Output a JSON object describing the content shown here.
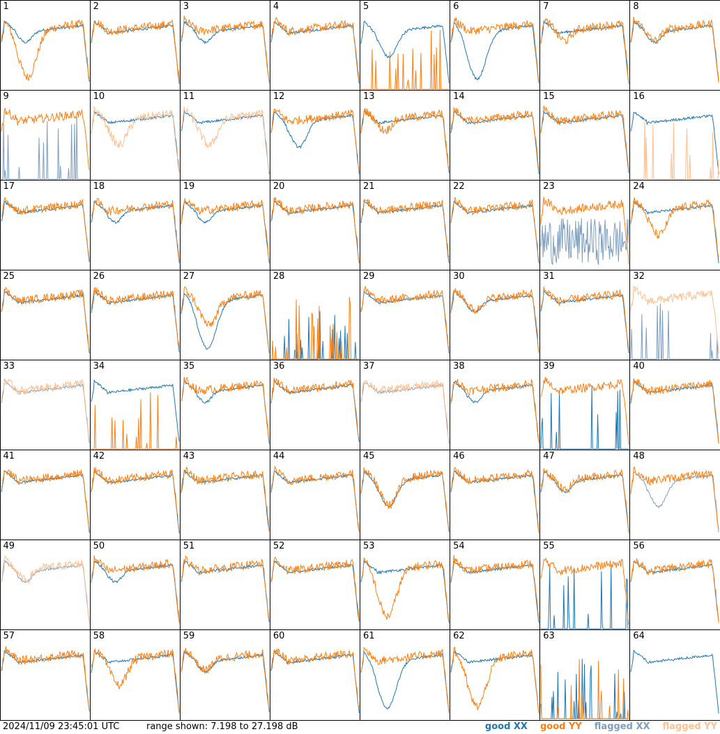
{
  "footer": {
    "timestamp": "2024/11/09 23:45:01 UTC",
    "range": "range shown: 7.198 to 27.198 dB"
  },
  "legend": [
    {
      "label": "good XX",
      "color": "#1f77b4"
    },
    {
      "label": "good YY",
      "color": "#ff7f0e"
    },
    {
      "label": "flagged XX",
      "color": "#7f9fbf"
    },
    {
      "label": "flagged YY",
      "color": "#ffbf90"
    }
  ],
  "chart_data": {
    "type": "line",
    "grid_rows": 8,
    "grid_cols": 8,
    "ylim": [
      7.198,
      27.198
    ],
    "panels": [
      {
        "id": "1",
        "xx": "good",
        "yy": "good",
        "xx_shape": "sag",
        "yy_shape": "deep_dip"
      },
      {
        "id": "2",
        "xx": "good",
        "yy": "good",
        "xx_shape": "flat",
        "yy_shape": "flat"
      },
      {
        "id": "3",
        "xx": "good",
        "yy": "good",
        "xx_shape": "sag",
        "yy_shape": "flat"
      },
      {
        "id": "4",
        "xx": "good",
        "yy": "good",
        "xx_shape": "flat",
        "yy_shape": "flat"
      },
      {
        "id": "5",
        "xx": "good",
        "yy": "good",
        "xx_shape": "dip",
        "yy_shape": "spikes_low"
      },
      {
        "id": "6",
        "xx": "good",
        "yy": "good",
        "xx_shape": "deep_dip",
        "yy_shape": "flat"
      },
      {
        "id": "7",
        "xx": "good",
        "yy": "good",
        "xx_shape": "flat",
        "yy_shape": "sag"
      },
      {
        "id": "8",
        "xx": "good",
        "yy": "good",
        "xx_shape": "sag",
        "yy_shape": "sag"
      },
      {
        "id": "9",
        "xx": "flagged",
        "yy": "good",
        "xx_shape": "spikes_low",
        "yy_shape": "flat"
      },
      {
        "id": "10",
        "xx": "good",
        "yy": "flagged",
        "xx_shape": "flat",
        "yy_shape": "dip"
      },
      {
        "id": "11",
        "xx": "good",
        "yy": "flagged",
        "xx_shape": "flat",
        "yy_shape": "dip"
      },
      {
        "id": "12",
        "xx": "good",
        "yy": "good",
        "xx_shape": "dip",
        "yy_shape": "flat"
      },
      {
        "id": "13",
        "xx": "good",
        "yy": "good",
        "xx_shape": "flat",
        "yy_shape": "sag"
      },
      {
        "id": "14",
        "xx": "good",
        "yy": "good",
        "xx_shape": "flat",
        "yy_shape": "flat"
      },
      {
        "id": "15",
        "xx": "good",
        "yy": "good",
        "xx_shape": "flat",
        "yy_shape": "flat"
      },
      {
        "id": "16",
        "xx": "good",
        "yy": "flagged",
        "xx_shape": "flat",
        "yy_shape": "spikes_low"
      },
      {
        "id": "17",
        "xx": "good",
        "yy": "good",
        "xx_shape": "flat",
        "yy_shape": "flat"
      },
      {
        "id": "18",
        "xx": "good",
        "yy": "good",
        "xx_shape": "sag",
        "yy_shape": "flat"
      },
      {
        "id": "19",
        "xx": "good",
        "yy": "good",
        "xx_shape": "sag",
        "yy_shape": "flat"
      },
      {
        "id": "20",
        "xx": "good",
        "yy": "good",
        "xx_shape": "flat",
        "yy_shape": "flat"
      },
      {
        "id": "21",
        "xx": "good",
        "yy": "good",
        "xx_shape": "flat",
        "yy_shape": "flat"
      },
      {
        "id": "22",
        "xx": "good",
        "yy": "good",
        "xx_shape": "flat",
        "yy_shape": "flat"
      },
      {
        "id": "23",
        "xx": "flagged",
        "yy": "good",
        "xx_shape": "noise",
        "yy_shape": "flat"
      },
      {
        "id": "24",
        "xx": "good",
        "yy": "good",
        "xx_shape": "flat",
        "yy_shape": "dip"
      },
      {
        "id": "25",
        "xx": "good",
        "yy": "good",
        "xx_shape": "flat",
        "yy_shape": "flat"
      },
      {
        "id": "26",
        "xx": "good",
        "yy": "good",
        "xx_shape": "flat",
        "yy_shape": "flat"
      },
      {
        "id": "27",
        "xx": "good",
        "yy": "good",
        "xx_shape": "deep_dip",
        "yy_shape": "dip"
      },
      {
        "id": "28",
        "xx": "good",
        "yy": "good",
        "xx_shape": "spikes_low",
        "yy_shape": "spikes_low"
      },
      {
        "id": "29",
        "xx": "good",
        "yy": "good",
        "xx_shape": "flat",
        "yy_shape": "flat"
      },
      {
        "id": "30",
        "xx": "good",
        "yy": "good",
        "xx_shape": "sag",
        "yy_shape": "sag"
      },
      {
        "id": "31",
        "xx": "good",
        "yy": "good",
        "xx_shape": "flat",
        "yy_shape": "flat"
      },
      {
        "id": "32",
        "xx": "flagged",
        "yy": "flagged",
        "xx_shape": "spikes_low",
        "yy_shape": "flat"
      },
      {
        "id": "33",
        "xx": "flagged",
        "yy": "flagged",
        "xx_shape": "flat",
        "yy_shape": "flat"
      },
      {
        "id": "34",
        "xx": "good",
        "yy": "good",
        "xx_shape": "flat",
        "yy_shape": "spikes_low"
      },
      {
        "id": "35",
        "xx": "good",
        "yy": "good",
        "xx_shape": "sag",
        "yy_shape": "flat"
      },
      {
        "id": "36",
        "xx": "good",
        "yy": "good",
        "xx_shape": "flat",
        "yy_shape": "flat"
      },
      {
        "id": "37",
        "xx": "flagged",
        "yy": "flagged",
        "xx_shape": "flat",
        "yy_shape": "flat"
      },
      {
        "id": "38",
        "xx": "good",
        "yy": "good",
        "xx_shape": "sag",
        "yy_shape": "flat"
      },
      {
        "id": "39",
        "xx": "good",
        "yy": "good",
        "xx_shape": "spikes_low",
        "yy_shape": "flat"
      },
      {
        "id": "40",
        "xx": "good",
        "yy": "good",
        "xx_shape": "flat",
        "yy_shape": "flat"
      },
      {
        "id": "41",
        "xx": "good",
        "yy": "good",
        "xx_shape": "flat",
        "yy_shape": "flat"
      },
      {
        "id": "42",
        "xx": "good",
        "yy": "good",
        "xx_shape": "flat",
        "yy_shape": "flat"
      },
      {
        "id": "43",
        "xx": "good",
        "yy": "good",
        "xx_shape": "flat",
        "yy_shape": "flat"
      },
      {
        "id": "44",
        "xx": "good",
        "yy": "good",
        "xx_shape": "flat",
        "yy_shape": "flat"
      },
      {
        "id": "45",
        "xx": "good",
        "yy": "good",
        "xx_shape": "dip",
        "yy_shape": "dip"
      },
      {
        "id": "46",
        "xx": "good",
        "yy": "good",
        "xx_shape": "flat",
        "yy_shape": "flat"
      },
      {
        "id": "47",
        "xx": "good",
        "yy": "good",
        "xx_shape": "sag",
        "yy_shape": "sag"
      },
      {
        "id": "48",
        "xx": "flagged",
        "yy": "good",
        "xx_shape": "dip",
        "yy_shape": "flat"
      },
      {
        "id": "49",
        "xx": "flagged",
        "yy": "flagged",
        "xx_shape": "sag",
        "yy_shape": "sag"
      },
      {
        "id": "50",
        "xx": "good",
        "yy": "good",
        "xx_shape": "sag",
        "yy_shape": "flat"
      },
      {
        "id": "51",
        "xx": "good",
        "yy": "good",
        "xx_shape": "flat",
        "yy_shape": "flat"
      },
      {
        "id": "52",
        "xx": "good",
        "yy": "good",
        "xx_shape": "flat",
        "yy_shape": "flat"
      },
      {
        "id": "53",
        "xx": "good",
        "yy": "good",
        "xx_shape": "flat",
        "yy_shape": "deep_dip"
      },
      {
        "id": "54",
        "xx": "good",
        "yy": "good",
        "xx_shape": "flat",
        "yy_shape": "flat"
      },
      {
        "id": "55",
        "xx": "good",
        "yy": "good",
        "xx_shape": "spikes_low",
        "yy_shape": "flat"
      },
      {
        "id": "56",
        "xx": "good",
        "yy": "good",
        "xx_shape": "flat",
        "yy_shape": "flat"
      },
      {
        "id": "57",
        "xx": "good",
        "yy": "good",
        "xx_shape": "flat",
        "yy_shape": "flat"
      },
      {
        "id": "58",
        "xx": "good",
        "yy": "good",
        "xx_shape": "flat",
        "yy_shape": "dip"
      },
      {
        "id": "59",
        "xx": "good",
        "yy": "good",
        "xx_shape": "sag",
        "yy_shape": "sag"
      },
      {
        "id": "60",
        "xx": "good",
        "yy": "good",
        "xx_shape": "flat",
        "yy_shape": "flat"
      },
      {
        "id": "61",
        "xx": "good",
        "yy": "good",
        "xx_shape": "deep_dip",
        "yy_shape": "flat"
      },
      {
        "id": "62",
        "xx": "good",
        "yy": "good",
        "xx_shape": "flat",
        "yy_shape": "deep_dip"
      },
      {
        "id": "63",
        "xx": "good",
        "yy": "good",
        "xx_shape": "spikes_low",
        "yy_shape": "spikes_low"
      },
      {
        "id": "64",
        "xx": "good",
        "yy": "good",
        "xx_shape": "flat",
        "yy_shape": "none"
      }
    ]
  }
}
